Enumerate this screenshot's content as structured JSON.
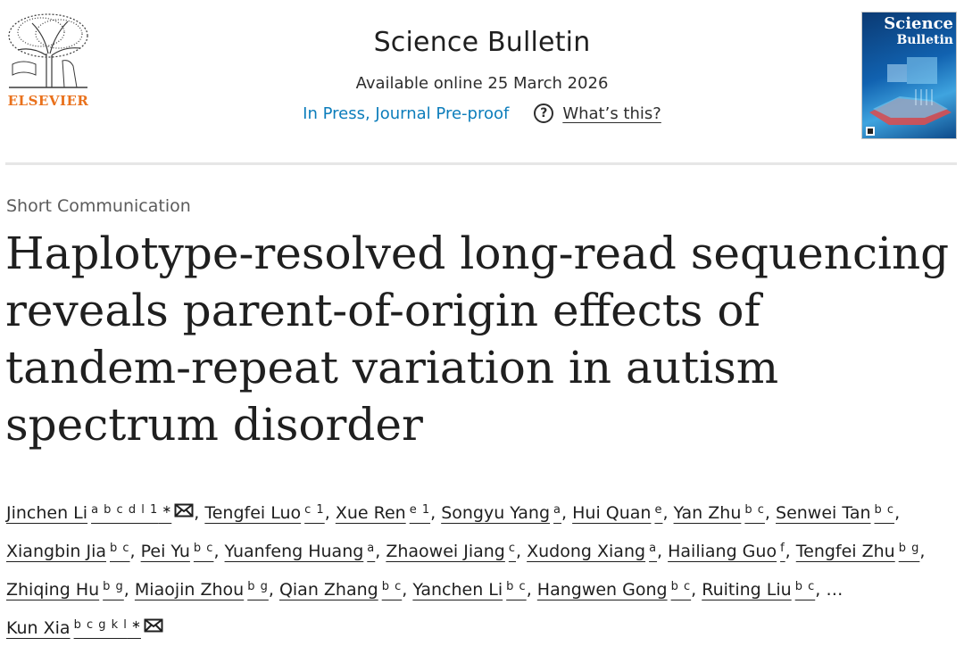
{
  "publisher": {
    "name": "ELSEVIER",
    "brand_color": "#e9711c"
  },
  "header": {
    "journal": "Science Bulletin",
    "available": "Available online 25 March 2026",
    "status": "In Press, Journal Pre-proof",
    "whats_this": "What’s this?",
    "link_color": "#0c7dbb"
  },
  "cover": {
    "title": "Science",
    "subtitle": "Bulletin"
  },
  "article": {
    "type": "Short Communication",
    "title": "Haplotype-resolved long-read sequencing reveals parent-of-origin effects of tandem-repeat variation in autism spectrum disorder"
  },
  "authors": [
    {
      "name": "Jinchen Li",
      "aff": "a b c d l 1",
      "corresponding": true
    },
    {
      "name": "Tengfei Luo",
      "aff": "c 1",
      "corresponding": false
    },
    {
      "name": "Xue Ren",
      "aff": "e 1",
      "corresponding": false
    },
    {
      "name": "Songyu Yang",
      "aff": "a",
      "corresponding": false
    },
    {
      "name": "Hui Quan",
      "aff": "e",
      "corresponding": false
    },
    {
      "name": "Yan Zhu",
      "aff": "b c",
      "corresponding": false
    },
    {
      "name": "Senwei Tan",
      "aff": "b c",
      "corresponding": false
    },
    {
      "name": "Xiangbin Jia",
      "aff": "b c",
      "corresponding": false
    },
    {
      "name": "Pei Yu",
      "aff": "b c",
      "corresponding": false
    },
    {
      "name": "Yuanfeng Huang",
      "aff": "a",
      "corresponding": false
    },
    {
      "name": "Zhaowei Jiang",
      "aff": "c",
      "corresponding": false
    },
    {
      "name": "Xudong Xiang",
      "aff": "a",
      "corresponding": false
    },
    {
      "name": "Hailiang Guo",
      "aff": "f",
      "corresponding": false
    },
    {
      "name": "Tengfei Zhu",
      "aff": "b g",
      "corresponding": false
    },
    {
      "name": "Zhiqing Hu",
      "aff": "b g",
      "corresponding": false
    },
    {
      "name": "Miaojin Zhou",
      "aff": "b g",
      "corresponding": false
    },
    {
      "name": "Qian Zhang",
      "aff": "b c",
      "corresponding": false
    },
    {
      "name": "Yanchen Li",
      "aff": "b c",
      "corresponding": false
    },
    {
      "name": "Hangwen Gong",
      "aff": "b c",
      "corresponding": false
    },
    {
      "name": "Ruiting Liu",
      "aff": "b c",
      "corresponding": false
    },
    {
      "name": "Kun Xia",
      "aff": "b c g k l",
      "corresponding": true
    }
  ],
  "ellipsis": "…",
  "icons": {
    "corresponding": "star-icon",
    "email": "envelope-icon",
    "help": "question-circle-icon"
  }
}
